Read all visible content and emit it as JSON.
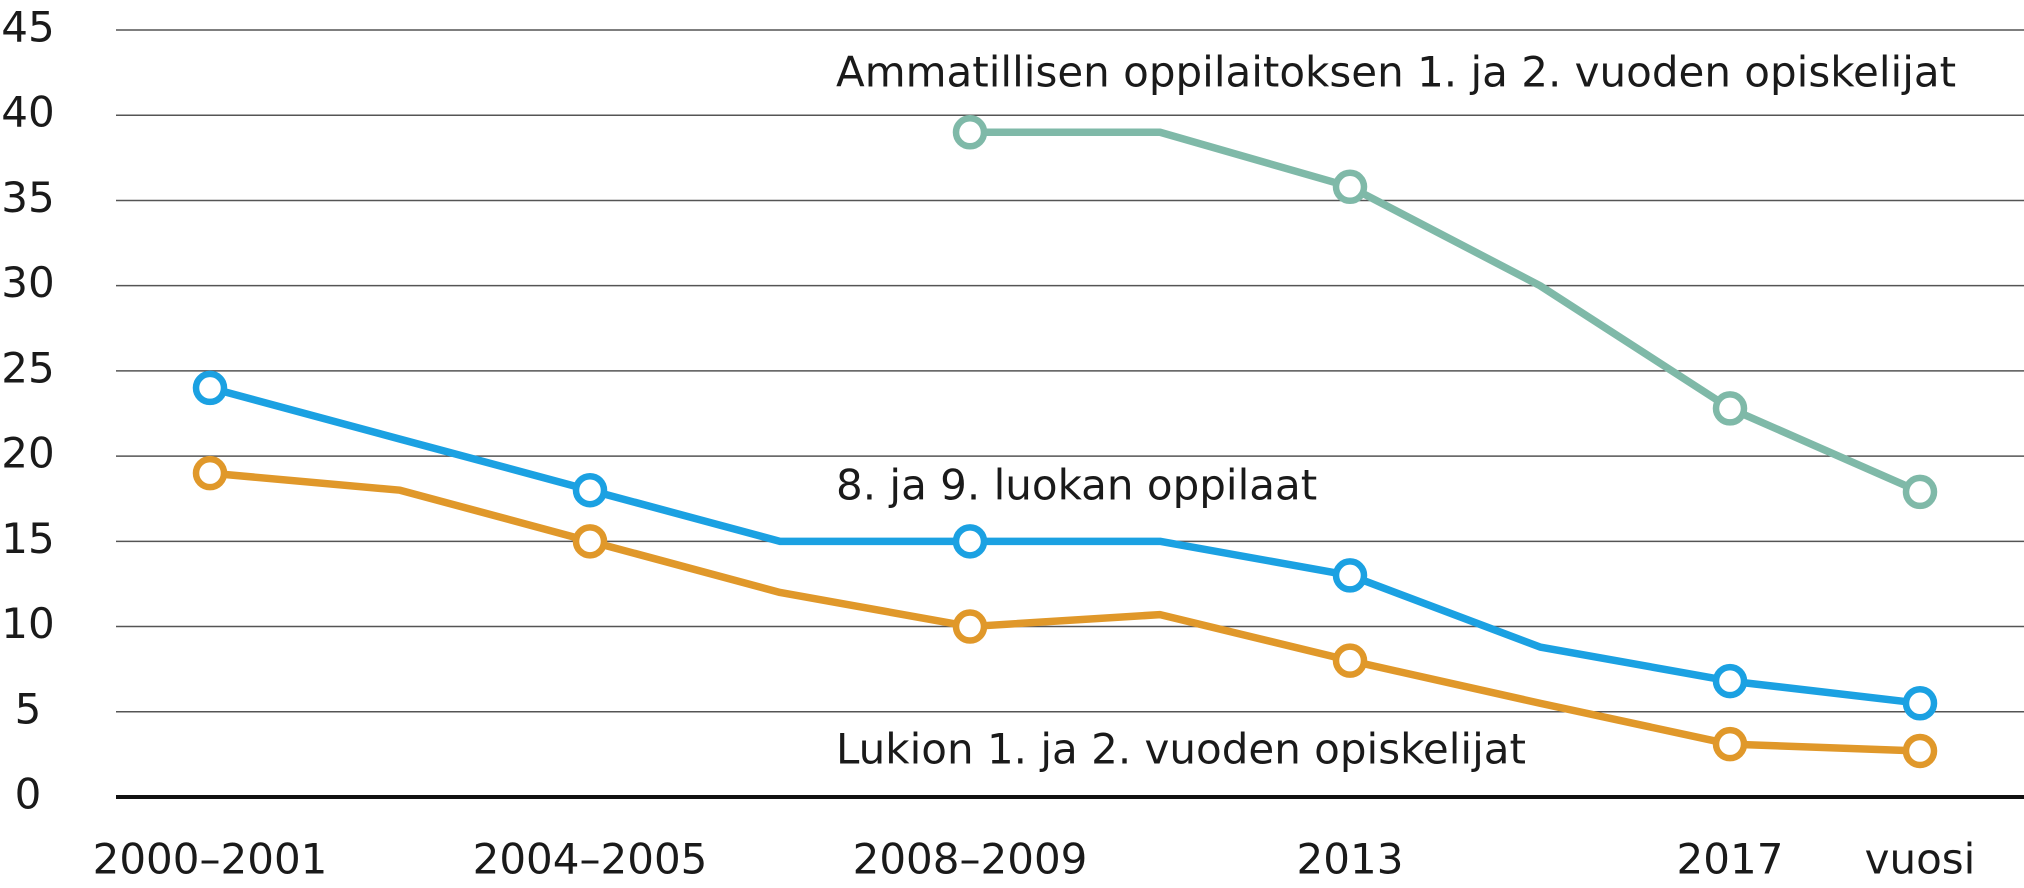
{
  "chart_data": {
    "type": "line",
    "categories": [
      "2000–2001",
      null,
      "2004–2005",
      null,
      "2008–2009",
      null,
      "2013",
      null,
      "2017",
      null
    ],
    "x_label": "vuosi",
    "series": [
      {
        "name": "Ammatillisen oppilaitoksen 1. ja 2. vuoden opiskelijat",
        "color": "#7fb9a8",
        "values": [
          null,
          null,
          null,
          null,
          39,
          39,
          35.8,
          30,
          22.8,
          17.9
        ]
      },
      {
        "name": "8. ja 9. luokan oppilaat",
        "color": "#1ba1e2",
        "values": [
          24,
          21,
          18,
          15,
          15,
          15,
          13,
          8.8,
          6.8,
          5.5
        ]
      },
      {
        "name": "Lukion 1. ja 2. vuoden opiskelijat",
        "color": "#e0982a",
        "values": [
          19,
          18,
          15,
          12,
          10,
          10.7,
          8,
          5.5,
          3.1,
          2.7
        ]
      }
    ],
    "markers": [
      0,
      2,
      4,
      6,
      8,
      9
    ],
    "ylim": [
      0,
      45
    ],
    "yticks": [
      0,
      5,
      10,
      15,
      20,
      25,
      30,
      35,
      40,
      45
    ],
    "grid": true
  }
}
